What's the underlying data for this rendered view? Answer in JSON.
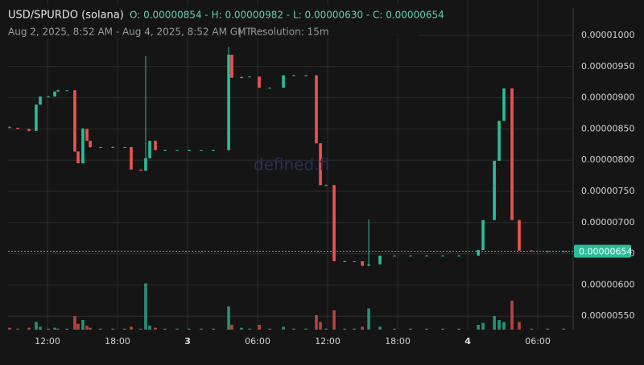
{
  "chart_data": {
    "type": "candlestick",
    "title": "USD/SPURDO (solana)",
    "ohlc_text": "O: 0.00000854 - H: 0.00000982 - L: 0.00000630 - C: 0.00000654",
    "subtitle": "Aug 2, 2025, 8:52 AM - Aug 4, 2025, 8:52 AM GMT",
    "resolution": "Resolution: 15m",
    "watermark": "defined.fi",
    "up_color": "#2bbd9a",
    "down_color": "#ef5350",
    "x": [
      8.76,
      9.45,
      10.41,
      11.03,
      11.38,
      12.07,
      12.62,
      12.9,
      13.66,
      14.34,
      14.62,
      15.03,
      15.38,
      15.66,
      16.55,
      17.59,
      18.62,
      19.17,
      20.0,
      20.41,
      20.76,
      21.24,
      22.07,
      23.1,
      24.14,
      25.17,
      26.21,
      27.52,
      27.79,
      28.62,
      29.31,
      30.14,
      31.03,
      32.21,
      33.1,
      34.14,
      35.03,
      35.38,
      35.86,
      36.55,
      37.45,
      38.28,
      38.97,
      39.52,
      40.48,
      41.72,
      43.1,
      44.48,
      45.86,
      47.24,
      48.9,
      49.31,
      50.28,
      50.69,
      51.1,
      51.79,
      52.41,
      53.45,
      54.83,
      56.21
    ],
    "open": [
      8.53e-06,
      8.52e-06,
      8.5e-06,
      8.47e-06,
      8.89e-06,
      9.02e-06,
      9.02e-06,
      9.1e-06,
      9.12e-06,
      9.12e-06,
      8.14e-06,
      7.95e-06,
      8.5e-06,
      8.31e-06,
      8.21e-06,
      8.21e-06,
      8.21e-06,
      8.21e-06,
      7.85e-06,
      7.83e-06,
      8.03e-06,
      8.31e-06,
      8.16e-06,
      8.16e-06,
      8.16e-06,
      8.16e-06,
      8.16e-06,
      8.16e-06,
      9.69e-06,
      9.32e-06,
      9.33e-06,
      9.34e-06,
      9.16e-06,
      9.16e-06,
      9.36e-06,
      9.36e-06,
      9.36e-06,
      8.27e-06,
      7.6e-06,
      7.6e-06,
      6.38e-06,
      6.38e-06,
      6.38e-06,
      6.31e-06,
      6.33e-06,
      6.47e-06,
      6.47e-06,
      6.47e-06,
      6.47e-06,
      6.47e-06,
      6.47e-06,
      6.56e-06,
      7.04e-06,
      7.99e-06,
      8.63e-06,
      9.15e-06,
      7.04e-06,
      6.55e-06,
      6.54e-06,
      6.54e-06
    ],
    "high": [
      8.55e-06,
      8.52e-06,
      8.5e-06,
      8.89e-06,
      9.02e-06,
      9.03e-06,
      9.1e-06,
      9.13e-06,
      9.12e-06,
      9.12e-06,
      8.14e-06,
      8.52e-06,
      8.5e-06,
      8.31e-06,
      8.21e-06,
      8.22e-06,
      8.21e-06,
      8.21e-06,
      7.85e-06,
      9.67e-06,
      8.31e-06,
      8.31e-06,
      8.17e-06,
      8.16e-06,
      8.17e-06,
      8.16e-06,
      8.17e-06,
      9.82e-06,
      9.69e-06,
      9.34e-06,
      9.34e-06,
      9.34e-06,
      9.17e-06,
      9.36e-06,
      9.37e-06,
      9.37e-06,
      9.36e-06,
      8.27e-06,
      7.61e-06,
      7.6e-06,
      6.39e-06,
      6.38e-06,
      6.38e-06,
      7.05e-06,
      6.47e-06,
      6.48e-06,
      6.48e-06,
      6.48e-06,
      6.48e-06,
      6.48e-06,
      6.56e-06,
      7.04e-06,
      7.99e-06,
      8.63e-06,
      9.15e-06,
      9.15e-06,
      7.04e-06,
      6.56e-06,
      6.55e-06,
      6.55e-06
    ],
    "low": [
      8.51e-06,
      8.5e-06,
      8.46e-06,
      8.47e-06,
      8.89e-06,
      9.01e-06,
      9.02e-06,
      9.1e-06,
      9.11e-06,
      8.13e-06,
      7.95e-06,
      7.95e-06,
      8.31e-06,
      8.2e-06,
      8.2e-06,
      8.21e-06,
      8.2e-06,
      7.85e-06,
      7.83e-06,
      7.83e-06,
      8.03e-06,
      8.16e-06,
      8.15e-06,
      8.15e-06,
      8.16e-06,
      8.15e-06,
      8.16e-06,
      8.16e-06,
      9.32e-06,
      9.31e-06,
      9.33e-06,
      9.16e-06,
      9.15e-06,
      9.16e-06,
      9.35e-06,
      9.36e-06,
      8.27e-06,
      7.6e-06,
      7.6e-06,
      6.38e-06,
      6.37e-06,
      6.37e-06,
      6.3e-06,
      6.3e-06,
      6.33e-06,
      6.46e-06,
      6.47e-06,
      6.46e-06,
      6.47e-06,
      6.46e-06,
      6.47e-06,
      6.56e-06,
      7.04e-06,
      7.99e-06,
      8.63e-06,
      7.04e-06,
      6.55e-06,
      6.54e-06,
      6.54e-06,
      6.54e-06
    ],
    "close": [
      8.52e-06,
      8.5e-06,
      8.47e-06,
      8.89e-06,
      9.02e-06,
      9.02e-06,
      9.1e-06,
      9.12e-06,
      9.12e-06,
      8.14e-06,
      7.95e-06,
      8.5e-06,
      8.31e-06,
      8.21e-06,
      8.21e-06,
      8.21e-06,
      8.21e-06,
      7.85e-06,
      7.83e-06,
      8.03e-06,
      8.31e-06,
      8.16e-06,
      8.16e-06,
      8.16e-06,
      8.16e-06,
      8.16e-06,
      8.16e-06,
      9.69e-06,
      9.32e-06,
      9.33e-06,
      9.34e-06,
      9.16e-06,
      9.16e-06,
      9.36e-06,
      9.36e-06,
      9.36e-06,
      8.27e-06,
      7.6e-06,
      7.6e-06,
      6.38e-06,
      6.38e-06,
      6.38e-06,
      6.31e-06,
      6.33e-06,
      6.47e-06,
      6.47e-06,
      6.47e-06,
      6.47e-06,
      6.47e-06,
      6.47e-06,
      6.56e-06,
      7.04e-06,
      7.99e-06,
      8.63e-06,
      9.15e-06,
      7.04e-06,
      6.55e-06,
      6.54e-06,
      6.54e-06,
      6.54e-06
    ],
    "volume": [
      2,
      1,
      2,
      8,
      3,
      1,
      2,
      1,
      1,
      14,
      6,
      10,
      4,
      2,
      1,
      1,
      1,
      3,
      1,
      48,
      4,
      2,
      1,
      1,
      1,
      1,
      1,
      24,
      5,
      2,
      1,
      5,
      1,
      3,
      1,
      1,
      15,
      8,
      1,
      20,
      1,
      1,
      3,
      22,
      3,
      1,
      1,
      1,
      1,
      1,
      5,
      7,
      14,
      10,
      8,
      30,
      8,
      1,
      1,
      1
    ],
    "xlim": [
      8.62,
      57.03
    ],
    "ylim": [
      5.284e-06,
      1.0567e-05
    ],
    "y2lim": [
      0,
      60
    ],
    "xticks": [
      {
        "value": 12,
        "label": "12:00"
      },
      {
        "value": 18,
        "label": "18:00"
      },
      {
        "value": 24,
        "label": "3"
      },
      {
        "value": 30,
        "label": "06:00"
      },
      {
        "value": 36,
        "label": "12:00"
      },
      {
        "value": 42,
        "label": "18:00"
      },
      {
        "value": 48,
        "label": "4"
      },
      {
        "value": 54,
        "label": "06:00"
      }
    ],
    "yticks": [
      {
        "value": 1e-05,
        "label": "0.00001000"
      },
      {
        "value": 9.5e-06,
        "label": "0.00000950"
      },
      {
        "value": 9e-06,
        "label": "0.00000900"
      },
      {
        "value": 8.5e-06,
        "label": "0.00000850"
      },
      {
        "value": 8e-06,
        "label": "0.00000800"
      },
      {
        "value": 7.5e-06,
        "label": "0.00000750"
      },
      {
        "value": 7e-06,
        "label": "0.00000700"
      },
      {
        "value": 6.5e-06,
        "label": "0.00000650"
      },
      {
        "value": 6e-06,
        "label": "0.00000600"
      },
      {
        "value": 5.5e-06,
        "label": "0.00000550"
      }
    ],
    "last_price": {
      "value": 6.54e-06,
      "label": "0.00000654"
    },
    "grid": true
  }
}
